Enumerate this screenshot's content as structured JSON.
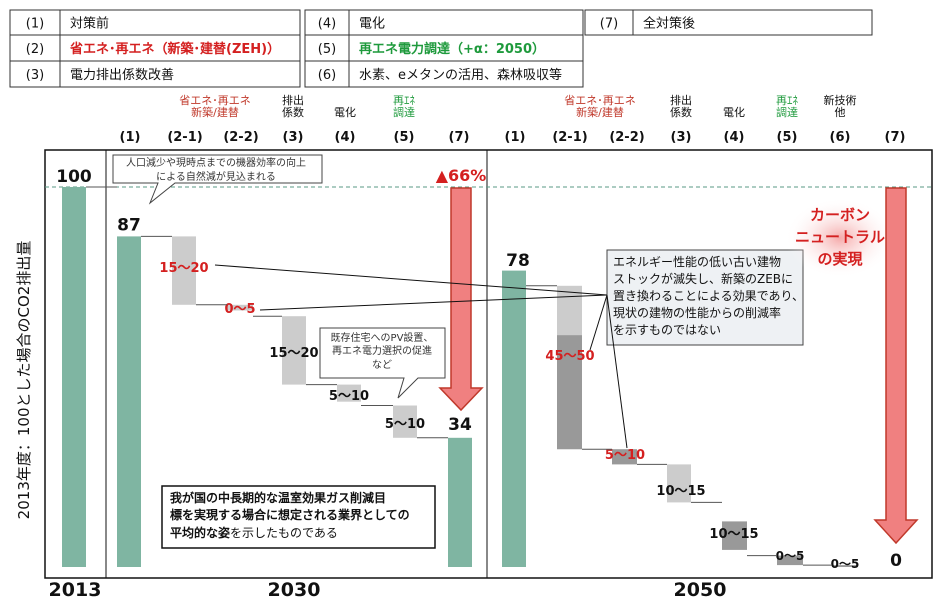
{
  "legend": {
    "items": [
      {
        "num": "(1)",
        "label": "対策前",
        "color": "#111111"
      },
      {
        "num": "(2)",
        "label": "省エネ･再エネ（新築･建替(ZEH)）",
        "color": "#d42020"
      },
      {
        "num": "(3)",
        "label": "電力排出係数改善",
        "color": "#111111"
      },
      {
        "num": "(4)",
        "label": "電化",
        "color": "#111111"
      },
      {
        "num": "(5)",
        "label": "再エネ電力調達（+α：2050）",
        "color": "#1e9a3c"
      },
      {
        "num": "(6)",
        "label": "水素、eメタンの活用、森林吸収等",
        "color": "#111111"
      },
      {
        "num": "(7)",
        "label": "全対策後",
        "color": "#111111"
      }
    ]
  },
  "chart_data": {
    "type": "bar",
    "ylabel": "2013年度：100とした場合のCO2排出量",
    "ylim": [
      0,
      100
    ],
    "bands": [
      {
        "name": "2013",
        "header": {
          "num": "",
          "label": []
        },
        "bars": [
          {
            "value": 100,
            "label": "100"
          }
        ]
      },
      {
        "name": "2030",
        "headers": [
          {
            "num": "(1)",
            "label": [],
            "label_color": "#111111"
          },
          {
            "num": "(2-1)",
            "label": [
              "省エネ･再エネ",
              "新築/建替"
            ],
            "label_color": "#c0392b"
          },
          {
            "num": "(2-2)",
            "label": [],
            "label_color": "#111111"
          },
          {
            "num": "(3)",
            "label": [
              "排出",
              "係数"
            ],
            "label_color": "#111111"
          },
          {
            "num": "(4)",
            "label": [
              "電化"
            ],
            "label_color": "#111111"
          },
          {
            "num": "(5)",
            "label": [
              "再ｴﾈ",
              "調達"
            ],
            "label_color": "#1e9a3c"
          },
          {
            "num": "(7)",
            "label": [],
            "label_color": "#111111"
          }
        ]
      },
      {
        "name": "2050",
        "headers": [
          {
            "num": "(1)",
            "label": [],
            "label_color": "#111111"
          },
          {
            "num": "(2-1)",
            "label": [
              "省エネ･再エネ",
              "新築/建替"
            ],
            "label_color": "#c0392b"
          },
          {
            "num": "(2-2)",
            "label": [],
            "label_color": "#111111"
          },
          {
            "num": "(3)",
            "label": [
              "排出",
              "係数"
            ],
            "label_color": "#111111"
          },
          {
            "num": "(4)",
            "label": [
              "電化"
            ],
            "label_color": "#111111"
          },
          {
            "num": "(5)",
            "label": [
              "再ｴﾈ",
              "調達"
            ],
            "label_color": "#1e9a3c"
          },
          {
            "num": "(6)",
            "label": [
              "新技術",
              "他"
            ],
            "label_color": "#111111"
          },
          {
            "num": "(7)",
            "label": [],
            "label_color": "#111111"
          }
        ]
      }
    ],
    "bars": [
      {
        "id": "b2013",
        "kind": "total",
        "top": 100,
        "bottom": 0,
        "label": "100",
        "color": "#7fb5a2"
      },
      {
        "id": "b2030_1",
        "kind": "total",
        "top": 87,
        "bottom": 0,
        "label": "87",
        "color": "#7fb5a2"
      },
      {
        "id": "b2030_21",
        "kind": "step",
        "top": 87,
        "bottom": 69,
        "label": "15～20",
        "label_color": "#d42020",
        "color": "#cccccc"
      },
      {
        "id": "b2030_22",
        "kind": "step",
        "top": 69,
        "bottom": 67.5,
        "label": "0～5",
        "label_color": "#d42020",
        "color": "#cccccc"
      },
      {
        "id": "b2030_3",
        "kind": "step",
        "top": 66,
        "bottom": 48,
        "label": "15～20",
        "label_color": "#111111",
        "color": "#cccccc"
      },
      {
        "id": "b2030_4",
        "kind": "step",
        "top": 48,
        "bottom": 43.5,
        "label": "5～10",
        "label_color": "#111111",
        "color": "#cccccc"
      },
      {
        "id": "b2030_5",
        "kind": "step",
        "top": 42.5,
        "bottom": 34,
        "label": "5～10",
        "label_color": "#111111",
        "color": "#cccccc"
      },
      {
        "id": "b2030_7",
        "kind": "total",
        "top": 34,
        "bottom": 0,
        "label": "34",
        "color": "#7fb5a2"
      },
      {
        "id": "b2050_1",
        "kind": "total",
        "top": 78,
        "bottom": 0,
        "label": "78",
        "color": "#7fb5a2"
      },
      {
        "id": "b2050_21",
        "kind": "step",
        "top": 74,
        "bottom": 31,
        "label": "45～50",
        "label_color": "#d42020",
        "color": "#cccccc",
        "inner_dark": {
          "top": 61,
          "bottom": 31
        }
      },
      {
        "id": "b2050_22",
        "kind": "step",
        "top": 31,
        "bottom": 27,
        "label": "5～10",
        "label_color": "#d42020",
        "color": "#999999"
      },
      {
        "id": "b2050_3",
        "kind": "step",
        "top": 27,
        "bottom": 17,
        "label": "10～15",
        "label_color": "#111111",
        "color": "#cccccc"
      },
      {
        "id": "b2050_4",
        "kind": "step",
        "top": 12,
        "bottom": 4.5,
        "label": "10～15",
        "label_color": "#111111",
        "color": "#999999"
      },
      {
        "id": "b2050_5",
        "kind": "step",
        "top": 3,
        "bottom": 0.5,
        "label": "0～5",
        "label_color": "#111111",
        "color": "#999999"
      },
      {
        "id": "b2050_6",
        "kind": "step",
        "top": 0.5,
        "bottom": 0,
        "label": "0～5",
        "label_color": "#111111",
        "color": "#999999"
      },
      {
        "id": "b2050_7",
        "kind": "total",
        "top": 0,
        "bottom": 0,
        "label": "0",
        "color": "#7fb5a2"
      }
    ],
    "x_labels": [
      "2013",
      "2030",
      "2050"
    ],
    "reference_line": 100,
    "annotations": {
      "natural_decline": "人口減少や現時点までの機器効率の向上による自然減が見込まれる",
      "reduction_2030": "▲66%",
      "pv_note": "既存住宅へのPV設置、再エネ電力選択の促進など",
      "average_note": "我が国の中長期的な温室効果ガス削減目標を実現する場合に想定される業界としての平均的な姿を示したものである",
      "zeb_note": "エネルギー性能の低い古い建物ストックが滅失し、新築のZEBに置き換わることによる効果であり、現状の建物の性能からの削減率を示すものではない",
      "carbon_neutral": "カーボンニュートラルの実現"
    },
    "colors": {
      "total": "#7fb5a2",
      "step": "#cccccc",
      "step_dark": "#999999",
      "arrow": "#e66060",
      "arrow_edge": "#c0392b",
      "dashed": "#5a9a84"
    }
  }
}
